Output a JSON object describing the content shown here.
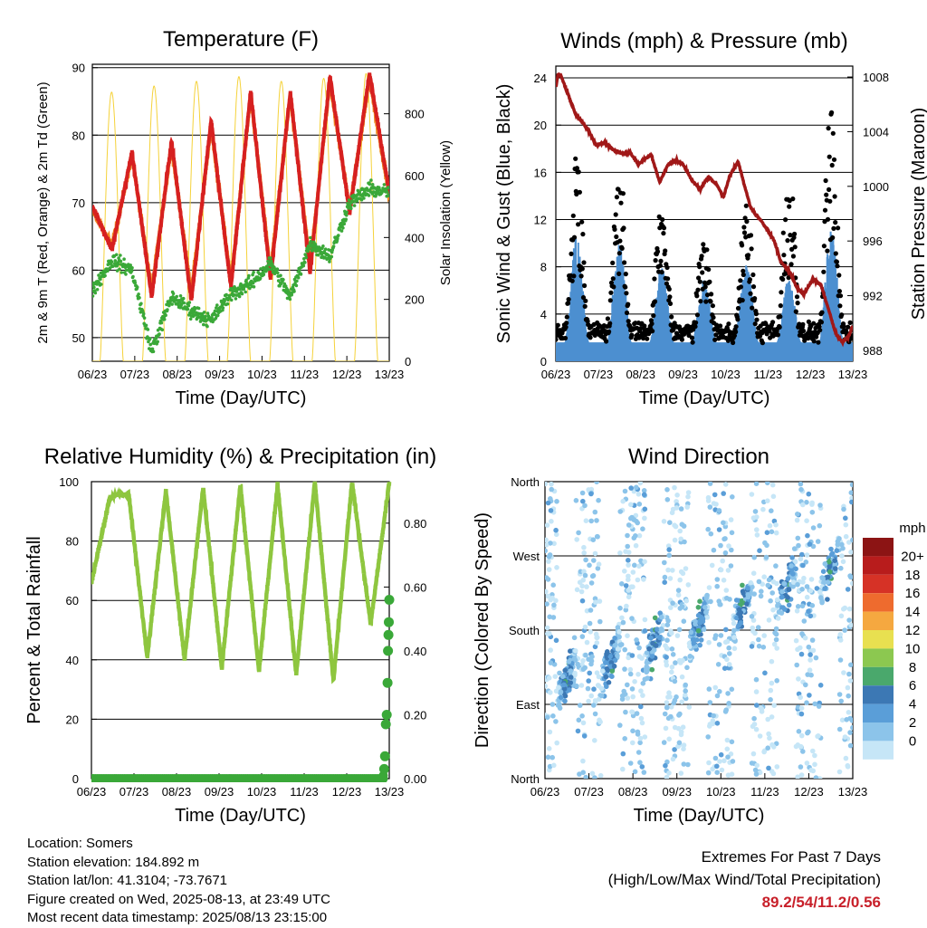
{
  "info": {
    "location": "Location: Somers",
    "elevation": "Station elevation: 184.892 m",
    "latlon": "Station lat/lon: 41.3104; -73.7671",
    "created": "Figure created on Wed, 2025-08-13, at 23:49 UTC",
    "latest": "Most recent data timestamp: 2025/08/13 23:15:00"
  },
  "extremes": {
    "line1": "Extremes For Past 7 Days",
    "line2": "(High/Low/Max Wind/Total Precipitation)",
    "values": "89.2/54/11.2/0.56"
  },
  "colors": {
    "temp2m": "#d62020",
    "temp9m": "#f08a20",
    "dewpoint": "#3aa838",
    "solar": "#f5d23a",
    "wind": "#4c8fd0",
    "gust": "#000000",
    "pressure": "#a01818",
    "rh": "#8ec63f",
    "precip": "#3aa838"
  },
  "chart_data": [
    {
      "type": "line",
      "title": "Temperature (F)",
      "xlabel": "Time (Day/UTC)",
      "ylabel": "2m & 9m T (Red, Orange) & 2m Td (Green)",
      "y2label": "Solar Insolation (Yellow)",
      "x_ticks": [
        "06/23",
        "07/23",
        "08/23",
        "09/23",
        "10/23",
        "11/23",
        "12/23",
        "13/23"
      ],
      "y_ticks": [
        50,
        60,
        70,
        80,
        90
      ],
      "y2_ticks": [
        0,
        200,
        400,
        600,
        800
      ],
      "ylim": [
        46.5,
        90.5
      ],
      "y2lim": [
        0,
        960
      ],
      "grid": "horizontal",
      "day_highs": [
        77.5,
        79.2,
        82.2,
        86.5,
        86.4,
        88.7,
        89.2
      ],
      "day_lows": [
        62.3,
        55.4,
        54.0,
        57.4,
        58.7,
        59.6,
        68.5
      ],
      "series": [
        {
          "name": "2m T",
          "values": [
            69.5,
            63.0,
            77.5,
            56.0,
            79.2,
            55.4,
            82.2,
            57.4,
            86.5,
            58.7,
            86.4,
            59.6,
            88.7,
            68.5,
            89.2,
            71.5
          ]
        },
        {
          "name": "9m T",
          "values": [
            69.0,
            63.5,
            77.0,
            57.0,
            78.5,
            56.5,
            81.5,
            58.0,
            86.0,
            59.5,
            86.0,
            60.5,
            88.0,
            69.0,
            88.5,
            71.0
          ]
        },
        {
          "name": "2m Td",
          "values": [
            57.0,
            61.5,
            60.0,
            48.0,
            56.0,
            54.0,
            52.5,
            56.5,
            58.0,
            61.0,
            56.0,
            64.0,
            62.0,
            70.0,
            72.0,
            71.5
          ]
        },
        {
          "name": "Solar",
          "values": [
            0,
            870,
            0,
            890,
            0,
            905,
            0,
            920,
            0,
            905,
            0,
            915,
            0,
            930,
            0,
            0
          ]
        }
      ]
    },
    {
      "type": "line",
      "title": "Winds (mph) & Pressure (mb)",
      "xlabel": "Time (Day/UTC)",
      "ylabel": "Sonic Wind & Gust (Blue, Black)",
      "y2label": "Station Pressure (Maroon)",
      "x_ticks": [
        "06/23",
        "07/23",
        "08/23",
        "09/23",
        "10/23",
        "11/23",
        "12/23",
        "13/23"
      ],
      "y_ticks": [
        0,
        4,
        8,
        12,
        16,
        20,
        24
      ],
      "y2_ticks": [
        988,
        992,
        996,
        1000,
        1004,
        1008
      ],
      "ylim": [
        0,
        25
      ],
      "y2lim": [
        987.2,
        1008.8
      ],
      "grid": "horizontal",
      "wind_day_peaks": [
        11.0,
        10.0,
        8.0,
        7.0,
        8.5,
        7.0,
        11.2
      ],
      "gust_day_peaks": [
        17.8,
        16.4,
        14.5,
        10.6,
        13.5,
        16.5,
        23.1
      ],
      "pressure": [
        [
          0.0,
          1007.2
        ],
        [
          0.05,
          1008.2
        ],
        [
          0.12,
          1008.1
        ],
        [
          0.28,
          1006.8
        ],
        [
          0.45,
          1005.4
        ],
        [
          0.65,
          1004.6
        ],
        [
          0.8,
          1003.9
        ],
        [
          0.95,
          1003.0
        ],
        [
          1.15,
          1003.2
        ],
        [
          1.35,
          1002.7
        ],
        [
          1.55,
          1002.4
        ],
        [
          1.75,
          1002.5
        ],
        [
          1.95,
          1001.6
        ],
        [
          2.1,
          1002.0
        ],
        [
          2.25,
          1002.3
        ],
        [
          2.45,
          1000.3
        ],
        [
          2.65,
          1001.6
        ],
        [
          2.85,
          1001.9
        ],
        [
          3.0,
          1001.6
        ],
        [
          3.2,
          1000.5
        ],
        [
          3.4,
          999.8
        ],
        [
          3.6,
          1000.7
        ],
        [
          3.8,
          1000.1
        ],
        [
          3.95,
          999.2
        ],
        [
          4.1,
          1000.8
        ],
        [
          4.3,
          1001.8
        ],
        [
          4.45,
          1000.0
        ],
        [
          4.6,
          998.4
        ],
        [
          4.8,
          997.6
        ],
        [
          5.0,
          996.8
        ],
        [
          5.15,
          996.0
        ],
        [
          5.3,
          994.5
        ],
        [
          5.5,
          993.8
        ],
        [
          5.7,
          992.5
        ],
        [
          5.85,
          992.1
        ],
        [
          6.05,
          993.2
        ],
        [
          6.25,
          992.8
        ],
        [
          6.45,
          990.8
        ],
        [
          6.6,
          989.2
        ],
        [
          6.75,
          988.6
        ],
        [
          6.9,
          989.0
        ],
        [
          7.0,
          989.8
        ]
      ]
    },
    {
      "type": "line",
      "title": "Relative Humidity (%) & Precipitation (in)",
      "xlabel": "Time (Day/UTC)",
      "ylabel": "Percent & Total Rainfall",
      "x_ticks": [
        "06/23",
        "07/23",
        "08/23",
        "09/23",
        "10/23",
        "11/23",
        "12/23",
        "13/23"
      ],
      "y_ticks": [
        0,
        20,
        40,
        60,
        80,
        100
      ],
      "y2_ticks": [
        "0.00",
        "0.20",
        "0.40",
        "0.60",
        "0.80"
      ],
      "ylim": [
        0,
        100
      ],
      "y2lim": [
        0,
        0.93
      ],
      "grid": "horizontal",
      "series": [
        {
          "name": "RH",
          "values": [
            66,
            95,
            96,
            41,
            97,
            40,
            98,
            37,
            99,
            36,
            99,
            35,
            100,
            33,
            100,
            52,
            100
          ]
        },
        {
          "name": "Precipitation",
          "points": [
            [
              0.0,
              0.0
            ],
            [
              6.85,
              0.0
            ],
            [
              6.88,
              0.03
            ],
            [
              6.9,
              0.07
            ],
            [
              6.92,
              0.17
            ],
            [
              6.94,
              0.2
            ],
            [
              6.96,
              0.3
            ],
            [
              6.97,
              0.4
            ],
            [
              6.98,
              0.45
            ],
            [
              6.99,
              0.49
            ],
            [
              7.0,
              0.56
            ]
          ]
        }
      ]
    },
    {
      "type": "scatter",
      "title": "Wind Direction",
      "xlabel": "Time (Day/UTC)",
      "ylabel": "Direction (Colored By Speed)",
      "x_ticks": [
        "06/23",
        "07/23",
        "08/23",
        "09/23",
        "10/23",
        "11/23",
        "12/23",
        "13/23"
      ],
      "y_ticks": [
        "North",
        "East",
        "South",
        "West",
        "North"
      ],
      "ylim": [
        0,
        360
      ],
      "grid": "horizontal",
      "colorbar_title": "mph",
      "colorbar_labels": [
        "0",
        "2",
        "4",
        "6",
        "8",
        "10",
        "12",
        "14",
        "16",
        "18",
        "20+"
      ],
      "colorbar_colors": [
        "#c6e6f7",
        "#8cc4ea",
        "#5a9ed8",
        "#3c78b4",
        "#4aa86c",
        "#8cc850",
        "#e8e050",
        "#f5a840",
        "#ee6b2e",
        "#d63226",
        "#b81c1c",
        "#8c1414"
      ]
    }
  ]
}
